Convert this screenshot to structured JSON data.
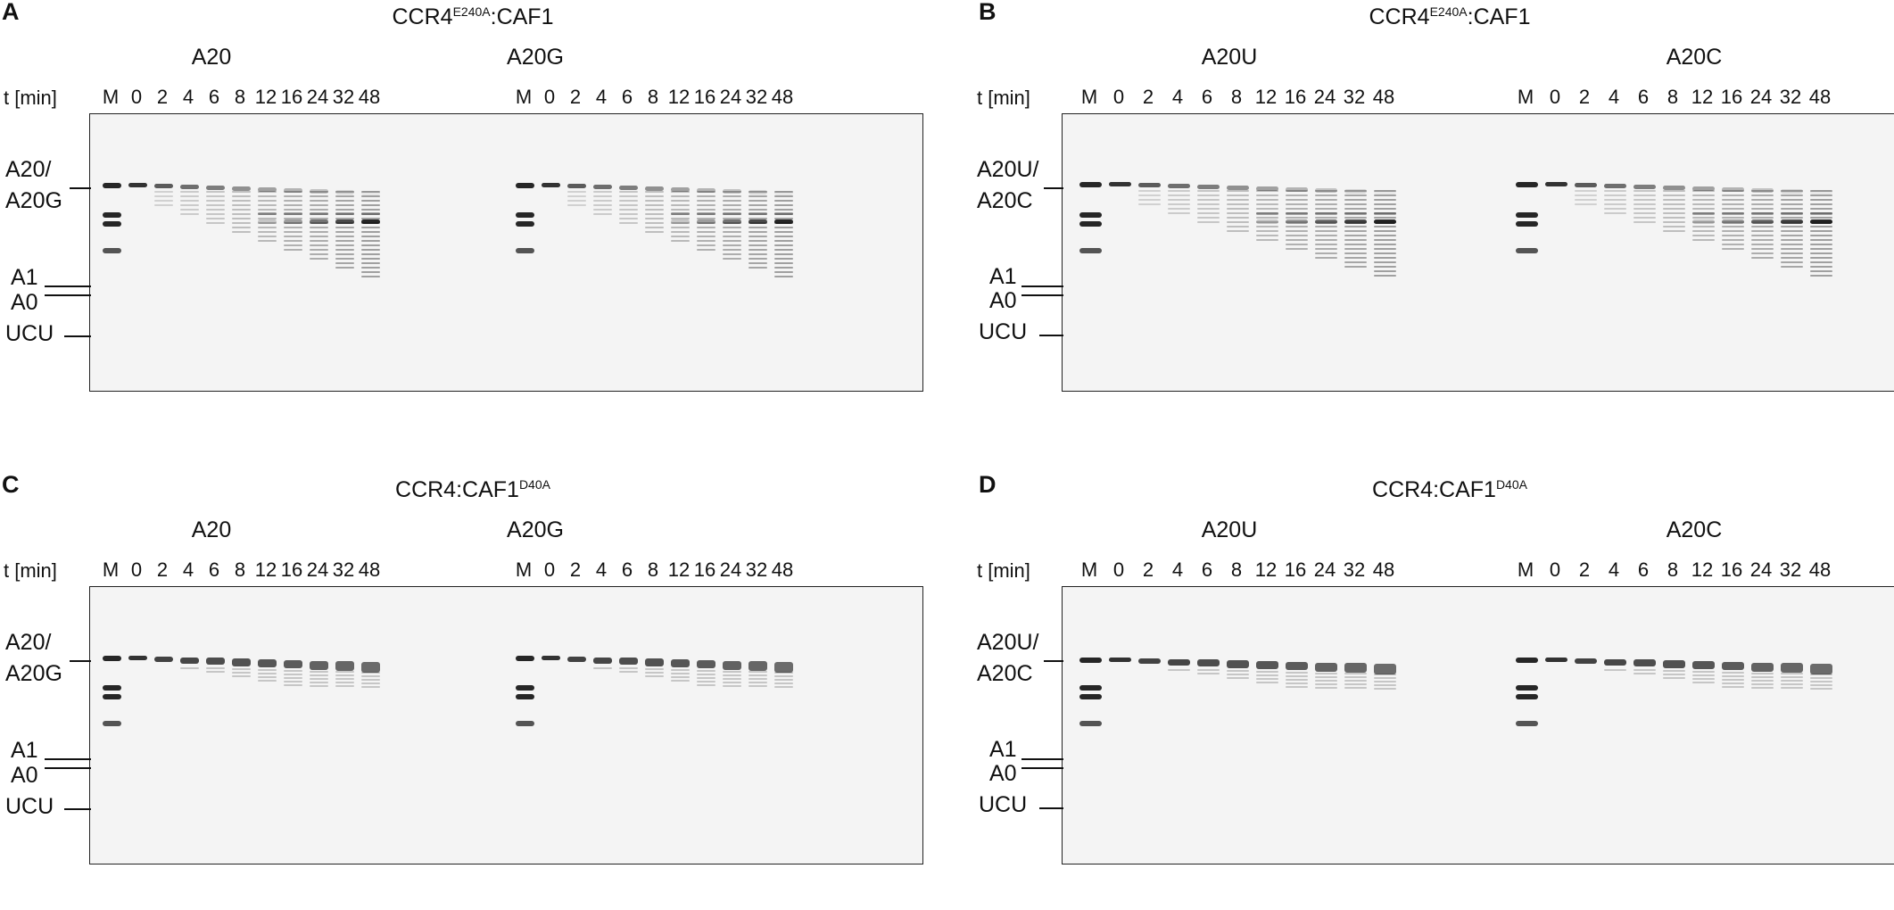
{
  "time_label": "t [min]",
  "lanes": [
    "M",
    "0",
    "2",
    "4",
    "6",
    "8",
    "12",
    "16",
    "24",
    "32",
    "48"
  ],
  "panels": [
    {
      "letter": "A",
      "title_main": "CCR4",
      "title_sup": "E240A",
      "title_rest": ":CAF1",
      "samples": [
        "A20",
        "A20G"
      ],
      "band_labels": {
        "top1": "A20/",
        "top2": "A20G",
        "a1": "A1",
        "a0": "A0",
        "ucu": "UCU"
      },
      "pattern": "deadenylation"
    },
    {
      "letter": "B",
      "title_main": "CCR4",
      "title_sup": "E240A",
      "title_rest": ":CAF1",
      "samples": [
        "A20U",
        "A20C"
      ],
      "band_labels": {
        "top1": "A20U/",
        "top2": "A20C",
        "a1": "A1",
        "a0": "A0",
        "ucu": "UCU"
      },
      "pattern": "deadenylation"
    },
    {
      "letter": "C",
      "title_main": "CCR4:CAF1",
      "title_sup": "D40A",
      "title_rest": "",
      "samples": [
        "A20",
        "A20G"
      ],
      "band_labels": {
        "top1": "A20/",
        "top2": "A20G",
        "a1": "A1",
        "a0": "A0",
        "ucu": "UCU"
      },
      "pattern": "slow"
    },
    {
      "letter": "D",
      "title_main": "CCR4:CAF1",
      "title_sup": "D40A",
      "title_rest": "",
      "samples": [
        "A20U",
        "A20C"
      ],
      "band_labels": {
        "top1": "A20U/",
        "top2": "A20C",
        "a1": "A1",
        "a0": "A0",
        "ucu": "UCU"
      },
      "pattern": "slow"
    }
  ]
}
